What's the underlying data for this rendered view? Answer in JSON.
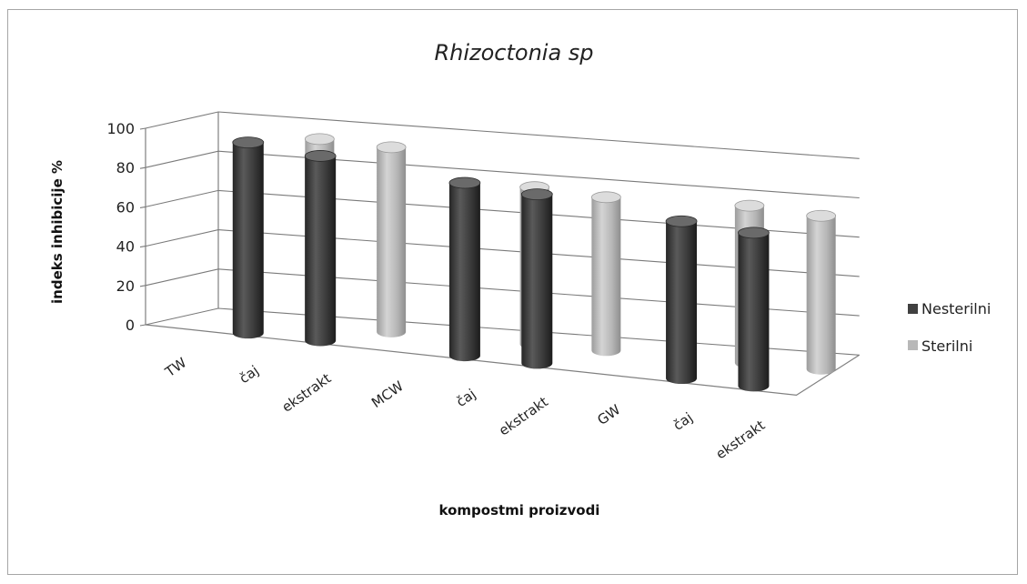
{
  "chart_data": {
    "type": "bar",
    "title": "Rhizoctonia sp",
    "xlabel": "kompostmi proizvodi",
    "ylabel": "indeks inhibicije %",
    "ylim": [
      0,
      100
    ],
    "yticks": [
      "0",
      "20",
      "40",
      "60",
      "80",
      "100"
    ],
    "categories": [
      "TW",
      "čaj",
      "ekstrakt",
      "MCW",
      "čaj",
      "ekstrakt",
      "GW",
      "čaj",
      "ekstrakt"
    ],
    "series": [
      {
        "name": "Nesterilni",
        "color": "#404040",
        "values": [
          null,
          97,
          94,
          null,
          88,
          86,
          null,
          80,
          78
        ]
      },
      {
        "name": "Sterilni",
        "color": "#b8b8b8",
        "values": [
          null,
          95,
          94,
          null,
          80,
          78,
          null,
          80,
          78
        ]
      }
    ],
    "legend_position": "right",
    "grid": true,
    "style": "3d-cylinder"
  }
}
